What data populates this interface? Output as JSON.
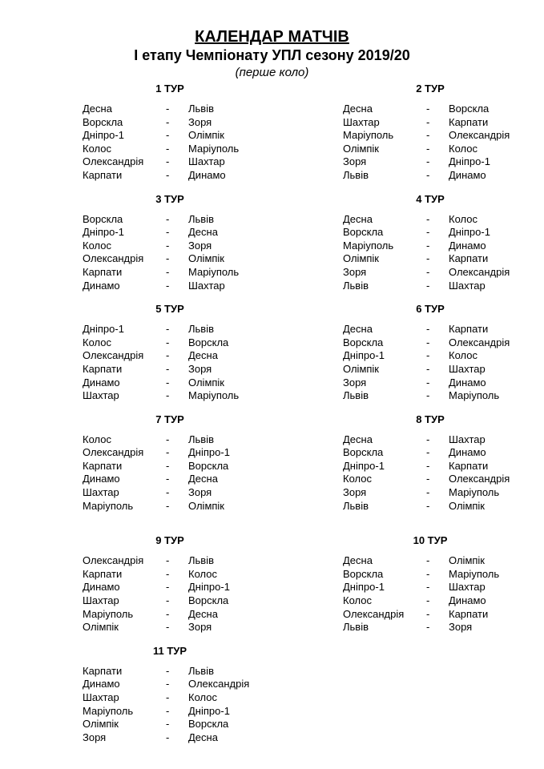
{
  "header": {
    "title": "КАЛЕНДАР МАТЧІВ",
    "subtitle": "І етапу Чемпіонату УПЛ сезону 2019/20",
    "note": "(перше коло)"
  },
  "separator": "-",
  "rounds": [
    {
      "label": "1 ТУР",
      "matches": [
        {
          "home": "Десна",
          "away": "Львів"
        },
        {
          "home": "Ворскла",
          "away": "Зоря"
        },
        {
          "home": "Дніпро-1",
          "away": "Олімпік"
        },
        {
          "home": "Колос",
          "away": "Маріуполь"
        },
        {
          "home": "Олександрія",
          "away": "Шахтар"
        },
        {
          "home": "Карпати",
          "away": "Динамо"
        }
      ]
    },
    {
      "label": "2 ТУР",
      "matches": [
        {
          "home": "Десна",
          "away": "Ворскла"
        },
        {
          "home": "Шахтар",
          "away": "Карпати"
        },
        {
          "home": "Маріуполь",
          "away": "Олександрія"
        },
        {
          "home": "Олімпік",
          "away": "Колос"
        },
        {
          "home": "Зоря",
          "away": "Дніпро-1"
        },
        {
          "home": "Львів",
          "away": "Динамо"
        }
      ]
    },
    {
      "label": "3 ТУР",
      "matches": [
        {
          "home": "Ворскла",
          "away": "Львів"
        },
        {
          "home": "Дніпро-1",
          "away": "Десна"
        },
        {
          "home": "Колос",
          "away": "Зоря"
        },
        {
          "home": "Олександрія",
          "away": "Олімпік"
        },
        {
          "home": "Карпати",
          "away": "Маріуполь"
        },
        {
          "home": "Динамо",
          "away": "Шахтар"
        }
      ]
    },
    {
      "label": "4 ТУР",
      "matches": [
        {
          "home": "Десна",
          "away": "Колос"
        },
        {
          "home": "Ворскла",
          "away": "Дніпро-1"
        },
        {
          "home": "Маріуполь",
          "away": "Динамо"
        },
        {
          "home": "Олімпік",
          "away": "Карпати"
        },
        {
          "home": "Зоря",
          "away": "Олександрія"
        },
        {
          "home": "Львів",
          "away": "Шахтар"
        }
      ]
    },
    {
      "label": "5 ТУР",
      "matches": [
        {
          "home": "Дніпро-1",
          "away": "Львів"
        },
        {
          "home": "Колос",
          "away": "Ворскла"
        },
        {
          "home": "Олександрія",
          "away": "Десна"
        },
        {
          "home": "Карпати",
          "away": "Зоря"
        },
        {
          "home": "Динамо",
          "away": "Олімпік"
        },
        {
          "home": "Шахтар",
          "away": "Маріуполь"
        }
      ]
    },
    {
      "label": "6 ТУР",
      "matches": [
        {
          "home": "Десна",
          "away": "Карпати"
        },
        {
          "home": "Ворскла",
          "away": "Олександрія"
        },
        {
          "home": "Дніпро-1",
          "away": "Колос"
        },
        {
          "home": "Олімпік",
          "away": "Шахтар"
        },
        {
          "home": "Зоря",
          "away": "Динамо"
        },
        {
          "home": "Львів",
          "away": "Маріуполь"
        }
      ]
    },
    {
      "label": "7 ТУР",
      "matches": [
        {
          "home": "Колос",
          "away": "Львів"
        },
        {
          "home": "Олександрія",
          "away": "Дніпро-1"
        },
        {
          "home": "Карпати",
          "away": "Ворскла"
        },
        {
          "home": "Динамо",
          "away": "Десна"
        },
        {
          "home": "Шахтар",
          "away": "Зоря"
        },
        {
          "home": "Маріуполь",
          "away": "Олімпік"
        }
      ]
    },
    {
      "label": "8 ТУР",
      "matches": [
        {
          "home": "Десна",
          "away": "Шахтар"
        },
        {
          "home": "Ворскла",
          "away": "Динамо"
        },
        {
          "home": "Дніпро-1",
          "away": "Карпати"
        },
        {
          "home": "Колос",
          "away": "Олександрія"
        },
        {
          "home": "Зоря",
          "away": "Маріуполь"
        },
        {
          "home": "Львів",
          "away": "Олімпік"
        }
      ]
    },
    {
      "label": "9 ТУР",
      "matches": [
        {
          "home": "Олександрія",
          "away": "Львів"
        },
        {
          "home": "Карпати",
          "away": "Колос"
        },
        {
          "home": "Динамо",
          "away": "Дніпро-1"
        },
        {
          "home": "Шахтар",
          "away": "Ворскла"
        },
        {
          "home": "Маріуполь",
          "away": "Десна"
        },
        {
          "home": "Олімпік",
          "away": "Зоря"
        }
      ]
    },
    {
      "label": "10 ТУР",
      "matches": [
        {
          "home": "Десна",
          "away": "Олімпік"
        },
        {
          "home": "Ворскла",
          "away": "Маріуполь"
        },
        {
          "home": "Дніпро-1",
          "away": "Шахтар"
        },
        {
          "home": "Колос",
          "away": "Динамо"
        },
        {
          "home": "Олександрія",
          "away": "Карпати"
        },
        {
          "home": "Львів",
          "away": "Зоря"
        }
      ]
    },
    {
      "label": "11 ТУР",
      "matches": [
        {
          "home": "Карпати",
          "away": "Львів"
        },
        {
          "home": "Динамо",
          "away": "Олександрія"
        },
        {
          "home": "Шахтар",
          "away": "Колос"
        },
        {
          "home": "Маріуполь",
          "away": "Дніпро-1"
        },
        {
          "home": "Олімпік",
          "away": "Ворскла"
        },
        {
          "home": "Зоря",
          "away": "Десна"
        }
      ]
    }
  ]
}
